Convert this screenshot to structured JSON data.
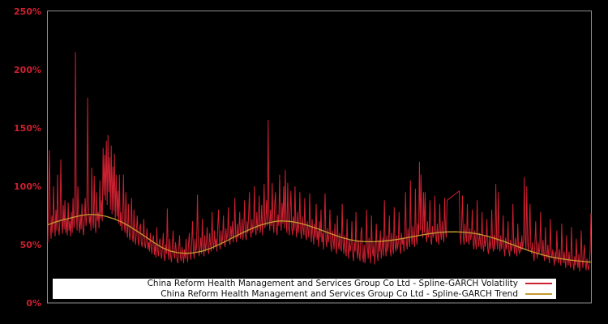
{
  "colors": {
    "background": "#000000",
    "plot_border": "#8f8f8f",
    "axis_label": "#cd2030",
    "volatility": "#cd2030",
    "trend": "#c49b32",
    "legend_bg": "#ffffff",
    "legend_text": "#111111"
  },
  "chart_data": {
    "type": "line",
    "title": "",
    "xlabel": "",
    "ylabel": "",
    "grid": false,
    "legend_position": "lower center",
    "x_axis": {
      "type": "index",
      "min": 0,
      "max": 668,
      "ticks": []
    },
    "y_axis": {
      "unit": "%",
      "ylim": [
        0,
        250
      ],
      "tick_values": [
        0,
        50,
        100,
        150,
        200,
        250
      ],
      "ticks": [
        "0%",
        "50%",
        "100%",
        "150%",
        "200%",
        "250%"
      ]
    },
    "series": [
      {
        "name": "China Reform Health Management and Services Group Co Ltd - Spline-GARCH Volatility",
        "color": "#cd2030",
        "unit": "%",
        "values": [
          52,
          95,
          131,
          68,
          55,
          75,
          60,
          100,
          70,
          57,
          80,
          62,
          110,
          66,
          58,
          72,
          123,
          70,
          59,
          84,
          63,
          88,
          60,
          72,
          58,
          86,
          62,
          70,
          57,
          78,
          60,
          90,
          64,
          70,
          215,
          78,
          62,
          100,
          70,
          60,
          76,
          63,
          85,
          65,
          58,
          72,
          90,
          66,
          74,
          176,
          85,
          68,
          75,
          62,
          116,
          72,
          64,
          109,
          68,
          60,
          95,
          70,
          78,
          64,
          105,
          72,
          88,
          70,
          133,
          92,
          127,
          88,
          139,
          84,
          144,
          95,
          125,
          80,
          135,
          76,
          117,
          79,
          128,
          72,
          110,
          74,
          96,
          68,
          110,
          66,
          78,
          62,
          72,
          110,
          68,
          60,
          95,
          63,
          56,
          85,
          60,
          54,
          66,
          90,
          57,
          52,
          80,
          56,
          50,
          62,
          75,
          54,
          49,
          64,
          68,
          52,
          48,
          58,
          72,
          50,
          47,
          56,
          64,
          46,
          52,
          44,
          60,
          48,
          42,
          55,
          58,
          41,
          50,
          39,
          65,
          46,
          40,
          52,
          55,
          42,
          38,
          48,
          60,
          40,
          36,
          50,
          42,
          81,
          44,
          37,
          55,
          40,
          35,
          48,
          62,
          42,
          38,
          52,
          45,
          36,
          34,
          47,
          58,
          40,
          36,
          48,
          42,
          34,
          46,
          38,
          55,
          40,
          35,
          50,
          60,
          42,
          37,
          52,
          70,
          45,
          38,
          55,
          43,
          48,
          93,
          52,
          40,
          46,
          56,
          42,
          72,
          48,
          40,
          58,
          44,
          52,
          65,
          46,
          42,
          60,
          50,
          44,
          78,
          52,
          46,
          62,
          48,
          55,
          44,
          66,
          80,
          52,
          46,
          62,
          50,
          56,
          75,
          52,
          48,
          64,
          54,
          58,
          82,
          55,
          50,
          66,
          56,
          70,
          52,
          60,
          90,
          58,
          52,
          68,
          56,
          62,
          78,
          55,
          60,
          72,
          54,
          64,
          88,
          58,
          54,
          70,
          60,
          76,
          95,
          62,
          56,
          72,
          60,
          66,
          100,
          64,
          58,
          78,
          62,
          70,
          92,
          60,
          66,
          84,
          58,
          72,
          102,
          64,
          70,
          88,
          66,
          157,
          76,
          62,
          80,
          66,
          103,
          68,
          60,
          84,
          95,
          64,
          58,
          76,
          66,
          110,
          72,
          62,
          86,
          68,
          100,
          64,
          114,
          70,
          60,
          103,
          66,
          58,
          80,
          96,
          64,
          58,
          74,
          62,
          100,
          66,
          56,
          78,
          60,
          68,
          95,
          62,
          55,
          74,
          64,
          58,
          90,
          60,
          54,
          70,
          62,
          56,
          94,
          64,
          52,
          72,
          58,
          50,
          68,
          56,
          85,
          54,
          62,
          48,
          70,
          56,
          80,
          52,
          60,
          46,
          66,
          94,
          54,
          48,
          64,
          52,
          58,
          80,
          50,
          44,
          62,
          54,
          46,
          68,
          50,
          42,
          75,
          52,
          46,
          60,
          48,
          44,
          85,
          52,
          42,
          58,
          46,
          40,
          72,
          48,
          38,
          55,
          44,
          50,
          70,
          42,
          36,
          52,
          44,
          78,
          46,
          38,
          54,
          42,
          36,
          60,
          65,
          42,
          35,
          50,
          34,
          44,
          80,
          48,
          38,
          56,
          42,
          34,
          75,
          46,
          40,
          52,
          33,
          46,
          68,
          42,
          36,
          54,
          44,
          62,
          38,
          46,
          56,
          40,
          88,
          48,
          40,
          58,
          44,
          52,
          75,
          46,
          40,
          60,
          48,
          42,
          82,
          50,
          44,
          58,
          46,
          52,
          78,
          48,
          42,
          60,
          50,
          56,
          44,
          62,
          95,
          52,
          46,
          64,
          54,
          48,
          105,
          58,
          50,
          66,
          54,
          48,
          98,
          56,
          50,
          68,
          58,
          121,
          62,
          110,
          66,
          56,
          95,
          60,
          95,
          58,
          52,
          70,
          56,
          62,
          88,
          54,
          50,
          66,
          56,
          60,
          92,
          58,
          52,
          68,
          56,
          50,
          85,
          60,
          54,
          70,
          58,
          52,
          90,
          62,
          56,
          88,
          88.5,
          89.1,
          89.6,
          90.1,
          90.7,
          91.2,
          91.7,
          92.3,
          92.8,
          93.3,
          93.9,
          94.4,
          94.9,
          95.5,
          96,
          58,
          50,
          66,
          92,
          56,
          50,
          68,
          58,
          52,
          85,
          56,
          50,
          64,
          54,
          58,
          80,
          52,
          46,
          62,
          52,
          46,
          88,
          56,
          48,
          60,
          52,
          46,
          78,
          50,
          44,
          58,
          48,
          54,
          72,
          46,
          42,
          56,
          46,
          52,
          80,
          50,
          44,
          58,
          46,
          102,
          54,
          46,
          95,
          52,
          44,
          58,
          46,
          52,
          75,
          46,
          40,
          56,
          46,
          50,
          70,
          44,
          40,
          54,
          44,
          48,
          85,
          50,
          42,
          56,
          46,
          40,
          68,
          46,
          42,
          52,
          44,
          58,
          46,
          54,
          108,
          56,
          46,
          100,
          52,
          44,
          60,
          85,
          48,
          42,
          52,
          42,
          36,
          50,
          70,
          44,
          38,
          52,
          42,
          46,
          78,
          46,
          40,
          54,
          42,
          36,
          65,
          44,
          38,
          50,
          40,
          34,
          72,
          44,
          38,
          46,
          38,
          32,
          44,
          36,
          62,
          40,
          34,
          46,
          38,
          32,
          68,
          42,
          34,
          44,
          36,
          30,
          58,
          38,
          32,
          44,
          34,
          30,
          65,
          40,
          34,
          28,
          40,
          32,
          55,
          36,
          30,
          42,
          27,
          36,
          62,
          38,
          30,
          42,
          50,
          34,
          28,
          38,
          32,
          28,
          34,
          45,
          77
        ]
      },
      {
        "name": "China Reform Health Management and Services Group Co Ltd - Spline-GARCH Trend",
        "color": "#c49b32",
        "unit": "%",
        "points": [
          [
            0,
            67
          ],
          [
            10,
            69.5
          ],
          [
            20,
            71.5
          ],
          [
            30,
            73.2
          ],
          [
            41,
            75
          ],
          [
            51,
            76
          ],
          [
            61,
            75.6
          ],
          [
            71,
            74.3
          ],
          [
            81,
            72.2
          ],
          [
            91,
            69.3
          ],
          [
            101,
            65.5
          ],
          [
            111,
            61
          ],
          [
            121,
            56.3
          ],
          [
            131,
            51.5
          ],
          [
            141,
            47.3
          ],
          [
            151,
            44.4
          ],
          [
            161,
            43
          ],
          [
            171,
            42.5
          ],
          [
            181,
            43.1
          ],
          [
            191,
            44.6
          ],
          [
            201,
            47
          ],
          [
            211,
            50.2
          ],
          [
            221,
            53.6
          ],
          [
            231,
            57.2
          ],
          [
            241,
            60.7
          ],
          [
            251,
            63.9
          ],
          [
            261,
            66.6
          ],
          [
            271,
            68.6
          ],
          [
            276,
            69.4
          ],
          [
            281,
            70
          ],
          [
            286,
            70.3
          ],
          [
            291,
            70.2
          ],
          [
            296,
            70
          ],
          [
            301,
            69.6
          ],
          [
            311,
            68.2
          ],
          [
            321,
            66.2
          ],
          [
            331,
            63.8
          ],
          [
            341,
            61.2
          ],
          [
            351,
            58.6
          ],
          [
            361,
            56.2
          ],
          [
            371,
            54.3
          ],
          [
            381,
            53
          ],
          [
            391,
            52.5
          ],
          [
            401,
            52.5
          ],
          [
            411,
            52.9
          ],
          [
            421,
            53.6
          ],
          [
            431,
            54.6
          ],
          [
            441,
            55.8
          ],
          [
            451,
            57.1
          ],
          [
            461,
            58.4
          ],
          [
            471,
            59.5
          ],
          [
            481,
            60.4
          ],
          [
            491,
            60.9
          ],
          [
            501,
            61
          ],
          [
            511,
            60.7
          ],
          [
            521,
            60
          ],
          [
            531,
            58.8
          ],
          [
            541,
            57.1
          ],
          [
            551,
            55
          ],
          [
            561,
            52.7
          ],
          [
            571,
            50.1
          ],
          [
            581,
            47.5
          ],
          [
            591,
            45
          ],
          [
            601,
            42.7
          ],
          [
            611,
            40.8
          ],
          [
            621,
            39.2
          ],
          [
            631,
            37.9
          ],
          [
            641,
            36.9
          ],
          [
            651,
            36.1
          ],
          [
            661,
            35.4
          ],
          [
            668,
            35.1
          ]
        ]
      }
    ]
  }
}
